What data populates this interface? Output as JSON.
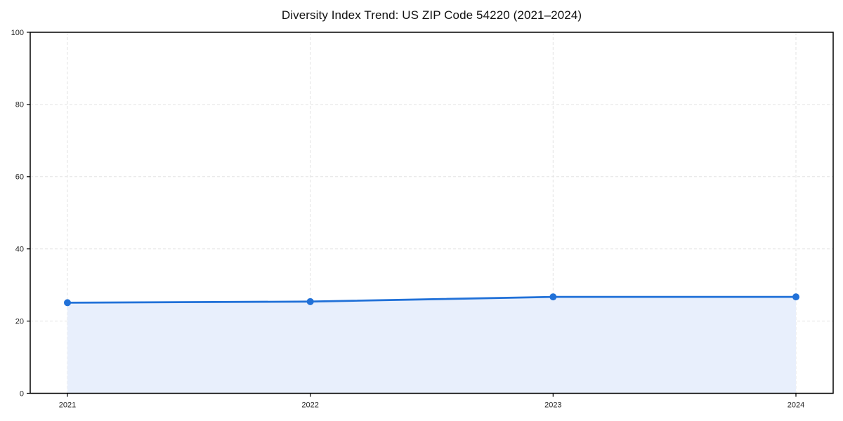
{
  "chart_data": {
    "type": "area",
    "title": "Diversity Index Trend: US ZIP Code 54220 (2021–2024)",
    "xlabel": "",
    "ylabel": "",
    "x": [
      2021,
      2022,
      2023,
      2024
    ],
    "xtick_labels": [
      "2021",
      "2022",
      "2023",
      "2024"
    ],
    "series": [
      {
        "name": "Diversity Index",
        "values": [
          25.1,
          25.4,
          26.7,
          26.7
        ]
      }
    ],
    "ylim": [
      0,
      100
    ],
    "yticks": [
      0,
      20,
      40,
      60,
      80,
      100
    ],
    "grid": true,
    "grid_style": "dashed",
    "legend": "none",
    "colors": {
      "line": "#2171d8",
      "marker": "#2171d8",
      "fill": "#e8effc",
      "grid": "#e3e3e3",
      "spine": "#000000",
      "tick_text": "#262626",
      "title_text": "#111111",
      "background": "#ffffff"
    }
  }
}
